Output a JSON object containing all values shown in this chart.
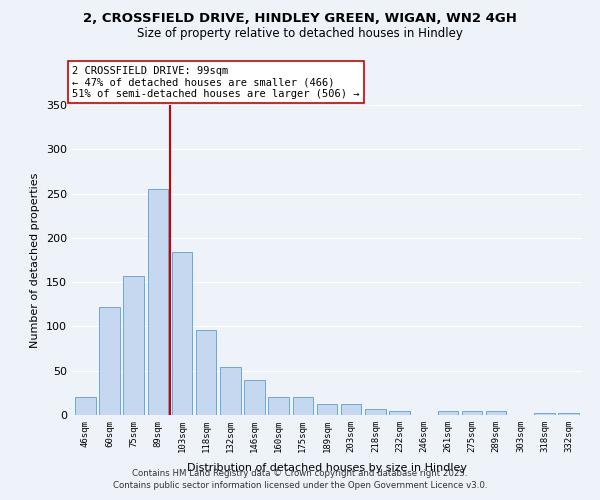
{
  "title1": "2, CROSSFIELD DRIVE, HINDLEY GREEN, WIGAN, WN2 4GH",
  "title2": "Size of property relative to detached houses in Hindley",
  "xlabel": "Distribution of detached houses by size in Hindley",
  "ylabel": "Number of detached properties",
  "categories": [
    "46sqm",
    "60sqm",
    "75sqm",
    "89sqm",
    "103sqm",
    "118sqm",
    "132sqm",
    "146sqm",
    "160sqm",
    "175sqm",
    "189sqm",
    "203sqm",
    "218sqm",
    "232sqm",
    "246sqm",
    "261sqm",
    "275sqm",
    "289sqm",
    "303sqm",
    "318sqm",
    "332sqm"
  ],
  "values": [
    20,
    122,
    157,
    255,
    184,
    96,
    54,
    39,
    20,
    20,
    12,
    12,
    7,
    5,
    0,
    4,
    4,
    4,
    0,
    2,
    2
  ],
  "bar_color": "#c5d8f0",
  "bar_edge_color": "#5a9fd4",
  "vline_x": 3.5,
  "vline_color": "#cc0000",
  "annotation_text": "2 CROSSFIELD DRIVE: 99sqm\n← 47% of detached houses are smaller (466)\n51% of semi-detached houses are larger (506) →",
  "annotation_box_color": "#ffffff",
  "annotation_box_edge": "#cc0000",
  "ylim": [
    0,
    350
  ],
  "yticks": [
    0,
    50,
    100,
    150,
    200,
    250,
    300,
    350
  ],
  "background_color": "#eef3fa",
  "grid_color": "#ffffff",
  "footer": "Contains HM Land Registry data © Crown copyright and database right 2025.\nContains public sector information licensed under the Open Government Licence v3.0."
}
